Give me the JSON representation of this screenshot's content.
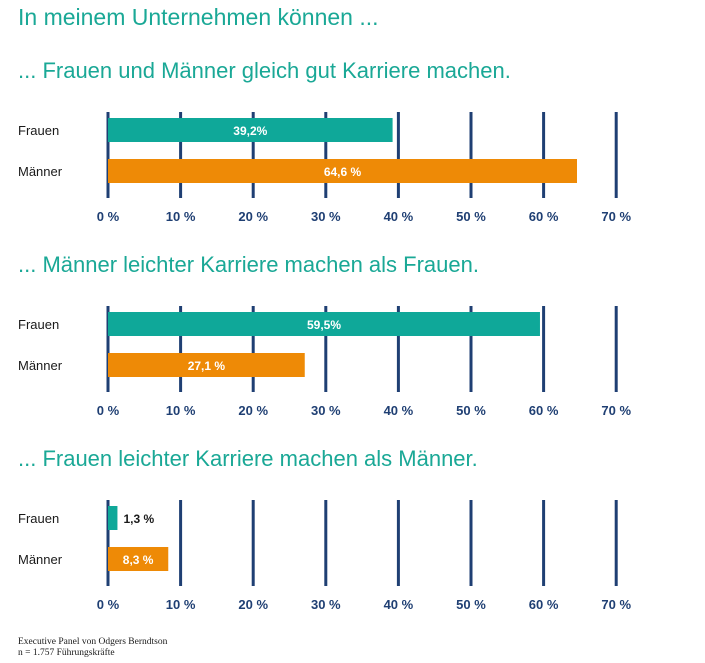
{
  "title": "In meinem Unternehmen können ...",
  "colors": {
    "frauen": "#0fa899",
    "maenner": "#ee8a06",
    "gridline": "#1f3f73",
    "heading": "#1aa896"
  },
  "chart_data": [
    {
      "type": "bar",
      "orientation": "horizontal",
      "title": "... Frauen und Männer gleich gut Karriere machen.",
      "categories": [
        "Frauen",
        "Männer"
      ],
      "values": [
        39.2,
        64.6
      ],
      "value_labels": [
        "39,2%",
        "64,6 %"
      ],
      "xlim": [
        0,
        70
      ],
      "xticks": [
        "0 %",
        "10 %",
        "20 %",
        "30 %",
        "40 %",
        "50 %",
        "60 %",
        "70 %"
      ],
      "grid": true
    },
    {
      "type": "bar",
      "orientation": "horizontal",
      "title": "... Männer leichter Karriere machen als Frauen.",
      "categories": [
        "Frauen",
        "Männer"
      ],
      "values": [
        59.5,
        27.1
      ],
      "value_labels": [
        "59,5%",
        "27,1 %"
      ],
      "xlim": [
        0,
        70
      ],
      "xticks": [
        "0 %",
        "10 %",
        "20 %",
        "30 %",
        "40 %",
        "50 %",
        "60 %",
        "70 %"
      ],
      "grid": true
    },
    {
      "type": "bar",
      "orientation": "horizontal",
      "title": "... Frauen leichter Karriere machen als Männer.",
      "categories": [
        "Frauen",
        "Männer"
      ],
      "values": [
        1.3,
        8.3
      ],
      "value_labels": [
        "1,3 %",
        "8,3 %"
      ],
      "xlim": [
        0,
        70
      ],
      "xticks": [
        "0 %",
        "10 %",
        "20 %",
        "30 %",
        "40 %",
        "50 %",
        "60 %",
        "70 %"
      ],
      "grid": true
    }
  ],
  "source": {
    "line1": "Executive Panel von Odgers Berndtson",
    "line2": "n = 1.757 Führungskräfte"
  }
}
